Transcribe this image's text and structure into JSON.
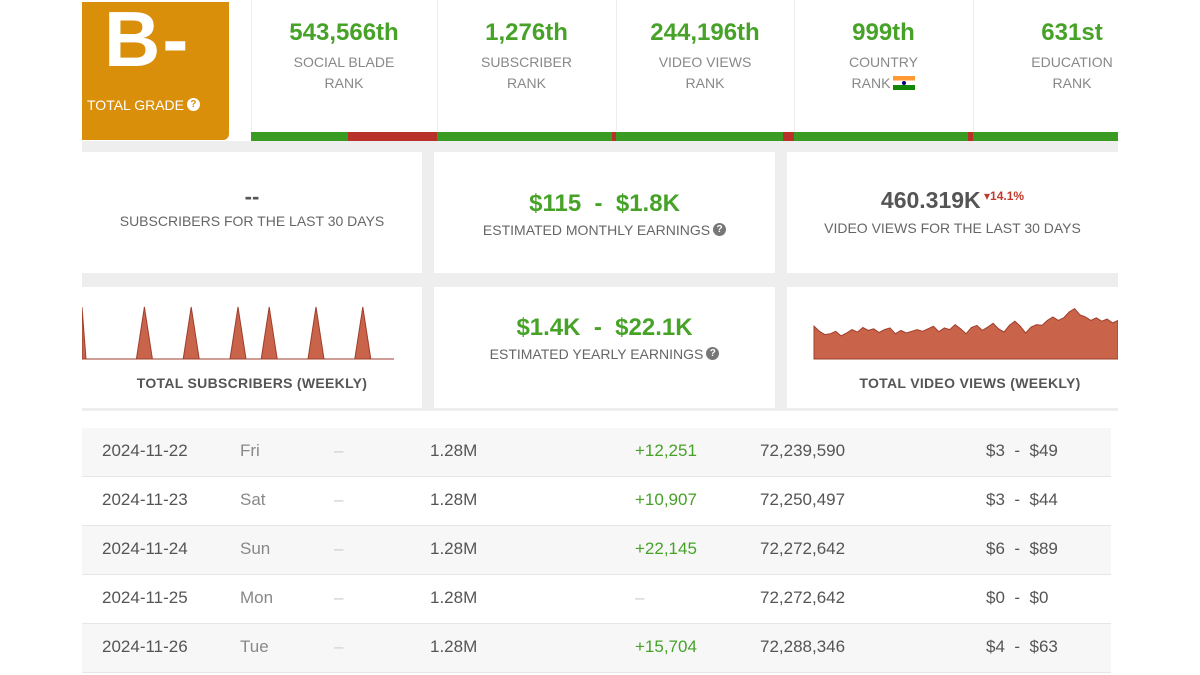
{
  "grade": {
    "letter": "B-",
    "label": "TOTAL GRADE",
    "help_icon": "question-circle-icon",
    "color": "#d98f0a"
  },
  "ranks": [
    {
      "value": "543,566th",
      "line1": "SOCIAL BLADE",
      "line2": "RANK",
      "bar_green_fraction": 0.52
    },
    {
      "value": "1,276th",
      "line1": "SUBSCRIBER",
      "line2": "RANK",
      "bar_green_fraction": 0.98
    },
    {
      "value": "244,196th",
      "line1": "VIDEO VIEWS",
      "line2": "RANK",
      "bar_green_fraction": 0.94
    },
    {
      "value": "999th",
      "line1": "COUNTRY",
      "line2": "RANK",
      "bar_green_fraction": 0.97,
      "flag": "india-flag-icon"
    },
    {
      "value": "631st",
      "line1": "EDUCATION",
      "line2": "RANK",
      "bar_green_fraction": 1.0
    }
  ],
  "summary": {
    "subscribers_30d": {
      "value": "--",
      "label": "SUBSCRIBERS FOR THE LAST 30 DAYS"
    },
    "monthly_earnings": {
      "low": "$115",
      "sep": "-",
      "high": "$1.8K",
      "label": "ESTIMATED MONTHLY EARNINGS"
    },
    "views_30d": {
      "value": "460.319K",
      "change": "14.1%",
      "change_direction": "down",
      "label": "VIDEO VIEWS FOR THE LAST 30 DAYS"
    },
    "yearly_earnings": {
      "low": "$1.4K",
      "sep": "-",
      "high": "$22.1K",
      "label": "ESTIMATED YEARLY EARNINGS"
    }
  },
  "charts": {
    "subscribers_weekly": {
      "title": "TOTAL SUBSCRIBERS (WEEKLY)",
      "type": "area",
      "values": [
        1,
        0,
        0,
        0,
        1,
        0,
        0,
        1,
        0,
        0,
        1,
        0,
        1,
        0,
        0,
        1,
        0,
        0,
        1,
        0,
        0
      ]
    },
    "views_weekly": {
      "title": "TOTAL VIDEO VIEWS (WEEKLY)",
      "type": "area",
      "values": [
        0.78,
        0.66,
        0.58,
        0.6,
        0.66,
        0.55,
        0.62,
        0.7,
        0.64,
        0.75,
        0.68,
        0.72,
        0.63,
        0.7,
        0.74,
        0.6,
        0.68,
        0.62,
        0.66,
        0.7,
        0.66,
        0.72,
        0.78,
        0.65,
        0.74,
        0.7,
        0.82,
        0.72,
        0.6,
        0.75,
        0.8,
        0.68,
        0.76,
        0.85,
        0.72,
        0.64,
        0.8,
        0.9,
        0.78,
        0.62,
        0.76,
        0.82,
        0.8,
        0.92,
        1.0,
        0.92,
        0.98,
        1.12,
        1.2,
        1.05,
        1.0,
        0.92,
        0.98,
        0.9,
        0.95,
        0.86,
        0.92
      ]
    }
  },
  "table": {
    "rows": [
      {
        "date": "2024-11-22",
        "day": "Fri",
        "sub_change": "–",
        "subscribers": "1.28M",
        "view_change": "+12,251",
        "views": "72,239,590",
        "earn_low": "$3",
        "earn_sep": "-",
        "earn_high": "$49"
      },
      {
        "date": "2024-11-23",
        "day": "Sat",
        "sub_change": "–",
        "subscribers": "1.28M",
        "view_change": "+10,907",
        "views": "72,250,497",
        "earn_low": "$3",
        "earn_sep": "-",
        "earn_high": "$44"
      },
      {
        "date": "2024-11-24",
        "day": "Sun",
        "sub_change": "–",
        "subscribers": "1.28M",
        "view_change": "+22,145",
        "views": "72,272,642",
        "earn_low": "$6",
        "earn_sep": "-",
        "earn_high": "$89"
      },
      {
        "date": "2024-11-25",
        "day": "Mon",
        "sub_change": "–",
        "subscribers": "1.28M",
        "view_change": "–",
        "views": "72,272,642",
        "earn_low": "$0",
        "earn_sep": "-",
        "earn_high": "$0"
      },
      {
        "date": "2024-11-26",
        "day": "Tue",
        "sub_change": "–",
        "subscribers": "1.28M",
        "view_change": "+15,704",
        "views": "72,288,346",
        "earn_low": "$4",
        "earn_sep": "-",
        "earn_high": "$63"
      }
    ]
  },
  "colors": {
    "green": "#47a228",
    "bar_green": "#3a9b22",
    "bar_red": "#b9322a",
    "chart_fill": "#c96349",
    "chart_line": "#9e3f2c",
    "negative": "#c0392b"
  }
}
